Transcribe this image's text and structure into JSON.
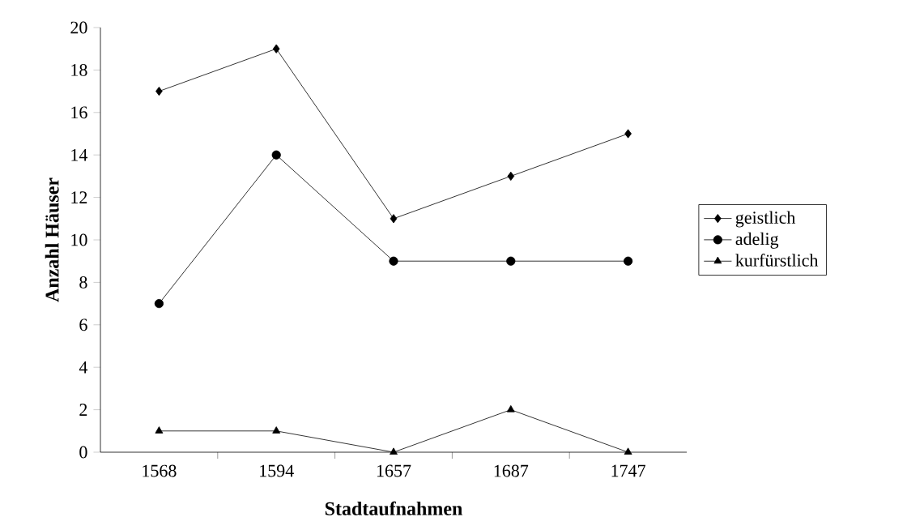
{
  "chart_data": {
    "type": "line",
    "xlabel": "Stadtaufnahmen",
    "ylabel": "Anzahl Häuser",
    "categories": [
      "1568",
      "1594",
      "1657",
      "1687",
      "1747"
    ],
    "series": [
      {
        "name": "geistlich",
        "color": "#000000",
        "marker": "diamond",
        "values": [
          17,
          19,
          11,
          13,
          15
        ]
      },
      {
        "name": "adelig",
        "color": "#000000",
        "marker": "circle",
        "values": [
          7,
          14,
          9,
          9,
          9
        ]
      },
      {
        "name": "kurfürstlich",
        "color": "#000000",
        "marker": "triangle",
        "values": [
          1,
          1,
          0,
          2,
          0
        ]
      }
    ],
    "ylim": [
      0,
      20
    ],
    "yticks": [
      0,
      2,
      4,
      6,
      8,
      10,
      12,
      14,
      16,
      18,
      20
    ],
    "grid": false,
    "legend": "right",
    "line_style": "solid"
  }
}
